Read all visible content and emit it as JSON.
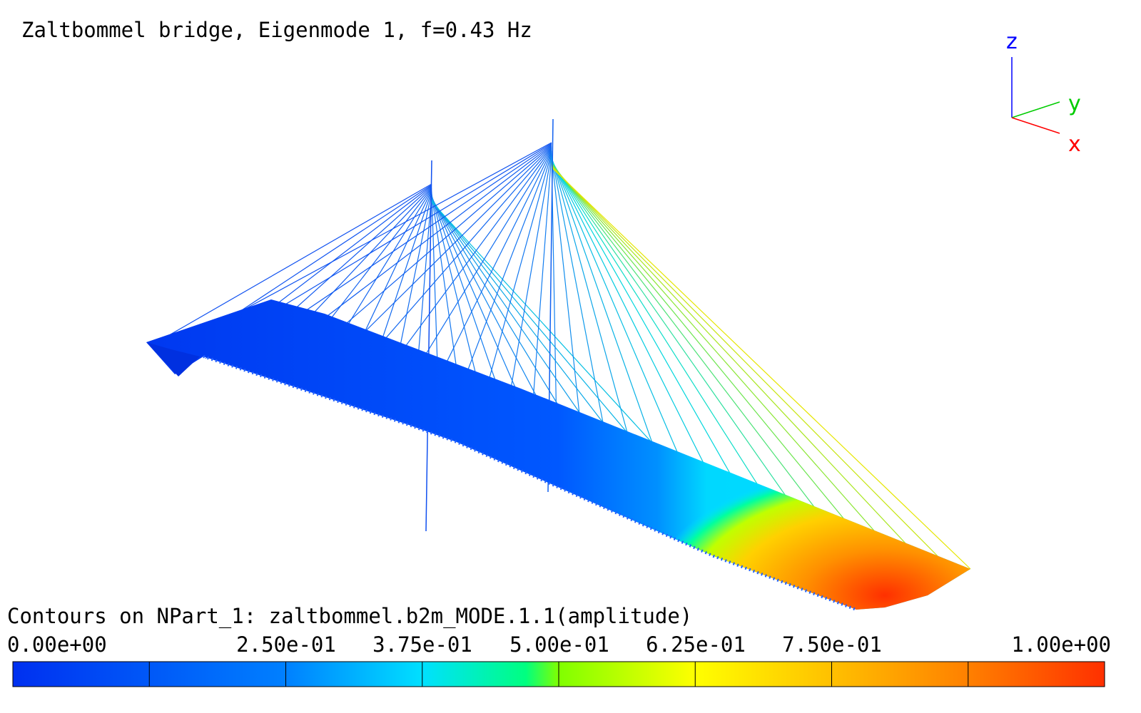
{
  "title": "Zaltbommel bridge, Eigenmode 1, f=0.43 Hz",
  "axes": {
    "z": "z",
    "y": "y",
    "x": "x"
  },
  "legend": {
    "title": "Contours on NPart_1: zaltbommel.b2m_MODE.1.1(amplitude)",
    "tick_labels": [
      "0.00e+00",
      "2.50e-01",
      "3.75e-01",
      "5.00e-01",
      "6.25e-01",
      "7.50e-01",
      "1.00e+00"
    ]
  }
}
